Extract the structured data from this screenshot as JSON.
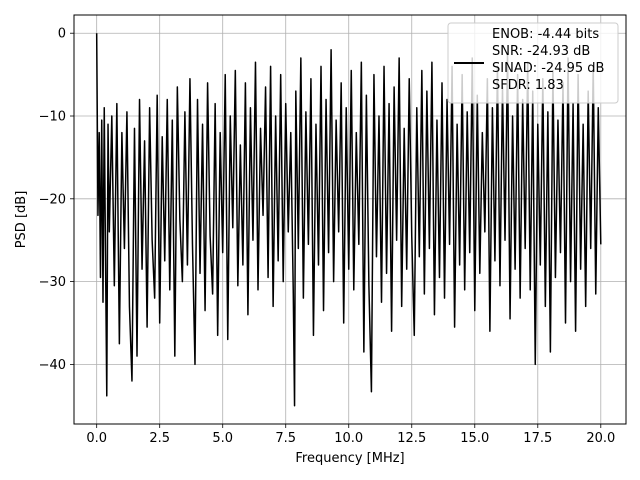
{
  "chart_data": {
    "type": "line",
    "xlabel": "Frequency [MHz]",
    "ylabel": "PSD [dB]",
    "xlim": [
      -0.9,
      21.0
    ],
    "ylim": [
      -47.2,
      2.2
    ],
    "xticks": [
      0.0,
      2.5,
      5.0,
      7.5,
      10.0,
      12.5,
      15.0,
      17.5,
      20.0
    ],
    "xtick_labels": [
      "0.0",
      "2.5",
      "5.0",
      "7.5",
      "10.0",
      "12.5",
      "15.0",
      "17.5",
      "20.0"
    ],
    "yticks": [
      0,
      -10,
      -20,
      -30,
      -40
    ],
    "ytick_labels": [
      "0",
      "−10",
      "−20",
      "−30",
      "−40"
    ],
    "grid": true,
    "legend_position": "upper-right",
    "legend": [
      "ENOB: -4.44 bits",
      "SNR: -24.93 dB",
      "SINAD: -24.95 dB",
      "SFDR: 1.83"
    ],
    "line_color": "#000000",
    "series": [
      {
        "x": [
          0.0,
          0.02,
          0.05,
          0.1,
          0.15,
          0.2,
          0.25,
          0.3,
          0.35,
          0.4,
          0.45,
          0.5,
          0.6,
          0.7,
          0.8,
          0.9,
          1.0,
          1.1,
          1.2,
          1.3,
          1.4,
          1.5,
          1.6,
          1.7,
          1.8,
          1.9,
          2.0,
          2.1,
          2.2,
          2.3,
          2.4,
          2.5,
          2.6,
          2.7,
          2.8,
          2.9,
          3.0,
          3.1,
          3.2,
          3.3,
          3.4,
          3.5,
          3.6,
          3.7,
          3.8,
          3.9,
          4.0,
          4.1,
          4.2,
          4.3,
          4.4,
          4.5,
          4.6,
          4.7,
          4.8,
          4.9,
          5.0,
          5.1,
          5.2,
          5.3,
          5.4,
          5.5,
          5.6,
          5.7,
          5.8,
          5.9,
          6.0,
          6.1,
          6.2,
          6.3,
          6.4,
          6.5,
          6.6,
          6.7,
          6.8,
          6.9,
          7.0,
          7.1,
          7.2,
          7.3,
          7.4,
          7.5,
          7.6,
          7.7,
          7.8,
          7.85,
          7.9,
          8.0,
          8.1,
          8.2,
          8.3,
          8.4,
          8.5,
          8.6,
          8.7,
          8.8,
          8.9,
          9.0,
          9.1,
          9.2,
          9.3,
          9.4,
          9.5,
          9.6,
          9.7,
          9.8,
          9.9,
          10.0,
          10.1,
          10.2,
          10.3,
          10.4,
          10.5,
          10.6,
          10.7,
          10.8,
          10.9,
          11.0,
          11.1,
          11.2,
          11.3,
          11.4,
          11.5,
          11.6,
          11.7,
          11.8,
          11.9,
          12.0,
          12.1,
          12.2,
          12.3,
          12.4,
          12.5,
          12.6,
          12.7,
          12.8,
          12.9,
          13.0,
          13.1,
          13.2,
          13.3,
          13.4,
          13.5,
          13.6,
          13.7,
          13.8,
          13.9,
          14.0,
          14.1,
          14.2,
          14.3,
          14.4,
          14.5,
          14.6,
          14.7,
          14.8,
          14.9,
          15.0,
          15.1,
          15.2,
          15.3,
          15.4,
          15.5,
          15.6,
          15.7,
          15.8,
          15.9,
          16.0,
          16.1,
          16.2,
          16.3,
          16.4,
          16.5,
          16.6,
          16.7,
          16.8,
          16.9,
          17.0,
          17.1,
          17.2,
          17.3,
          17.4,
          17.5,
          17.6,
          17.7,
          17.8,
          17.9,
          18.0,
          18.1,
          18.2,
          18.3,
          18.4,
          18.5,
          18.6,
          18.7,
          18.8,
          18.9,
          19.0,
          19.1,
          19.2,
          19.3,
          19.4,
          19.5,
          19.6,
          19.7,
          19.8,
          19.9,
          20.0
        ],
        "y": [
          0.0,
          -8.5,
          -22.0,
          -12.0,
          -29.5,
          -10.5,
          -32.5,
          -9.0,
          -27.0,
          -43.8,
          -11.0,
          -24.0,
          -10.0,
          -30.5,
          -8.5,
          -37.5,
          -12.0,
          -26.0,
          -9.5,
          -33.0,
          -42.0,
          -11.5,
          -39.0,
          -8.0,
          -28.5,
          -13.0,
          -35.5,
          -9.0,
          -25.0,
          -32.0,
          -7.5,
          -35.0,
          -12.5,
          -27.5,
          -8.0,
          -31.0,
          -10.5,
          -39.0,
          -6.5,
          -22.5,
          -30.0,
          -9.5,
          -28.0,
          -5.5,
          -25.5,
          -40.0,
          -8.0,
          -29.0,
          -11.0,
          -33.5,
          -6.0,
          -24.5,
          -31.5,
          -8.5,
          -36.5,
          -12.0,
          -26.5,
          -5.0,
          -37.0,
          -10.0,
          -23.5,
          -4.5,
          -30.5,
          -13.5,
          -28.0,
          -6.0,
          -34.0,
          -9.0,
          -25.0,
          -3.5,
          -31.0,
          -11.5,
          -22.0,
          -6.5,
          -29.5,
          -4.0,
          -33.0,
          -10.0,
          -27.5,
          -5.0,
          -30.0,
          -8.5,
          -24.0,
          -12.0,
          -31.5,
          -45.0,
          -7.0,
          -26.0,
          -3.0,
          -32.0,
          -9.5,
          -25.5,
          -5.5,
          -36.5,
          -11.0,
          -28.0,
          -4.0,
          -33.5,
          -8.0,
          -26.5,
          -2.0,
          -30.0,
          -10.5,
          -24.0,
          -6.0,
          -35.0,
          -9.0,
          -28.5,
          -4.5,
          -31.0,
          -12.0,
          -25.5,
          -3.5,
          -38.5,
          -7.5,
          -30.5,
          -43.3,
          -5.0,
          -27.0,
          -10.0,
          -32.5,
          -4.0,
          -29.0,
          -8.5,
          -36.0,
          -6.5,
          -25.0,
          -3.0,
          -33.0,
          -11.5,
          -28.5,
          -5.5,
          -24.5,
          -36.5,
          -9.0,
          -27.0,
          -4.5,
          -31.5,
          -7.0,
          -26.0,
          -3.5,
          -34.0,
          -10.5,
          -29.5,
          -6.0,
          -32.0,
          -8.0,
          -25.5,
          -4.0,
          -35.5,
          -11.0,
          -28.0,
          -5.0,
          -31.0,
          -9.5,
          -26.5,
          -3.0,
          -33.5,
          -7.5,
          -29.0,
          -12.0,
          -24.0,
          -5.5,
          -36.0,
          -9.0,
          -27.5,
          -4.0,
          -30.5,
          -6.5,
          -25.0,
          -2.5,
          -34.5,
          -10.0,
          -28.5,
          -5.0,
          -32.0,
          -8.0,
          -26.0,
          -3.5,
          -31.0,
          -7.0,
          -40.0,
          -11.0,
          -28.0,
          -5.5,
          -33.0,
          -9.5,
          -38.5,
          -4.5,
          -29.5,
          -10.5,
          -26.5,
          -6.0,
          -35.0,
          -3.0,
          -30.0,
          -8.5,
          -36.0,
          -5.0,
          -28.5,
          -11.0,
          -33.0,
          -7.0,
          -26.0,
          -4.0,
          -31.5,
          -9.0,
          -25.5
        ]
      }
    ]
  }
}
